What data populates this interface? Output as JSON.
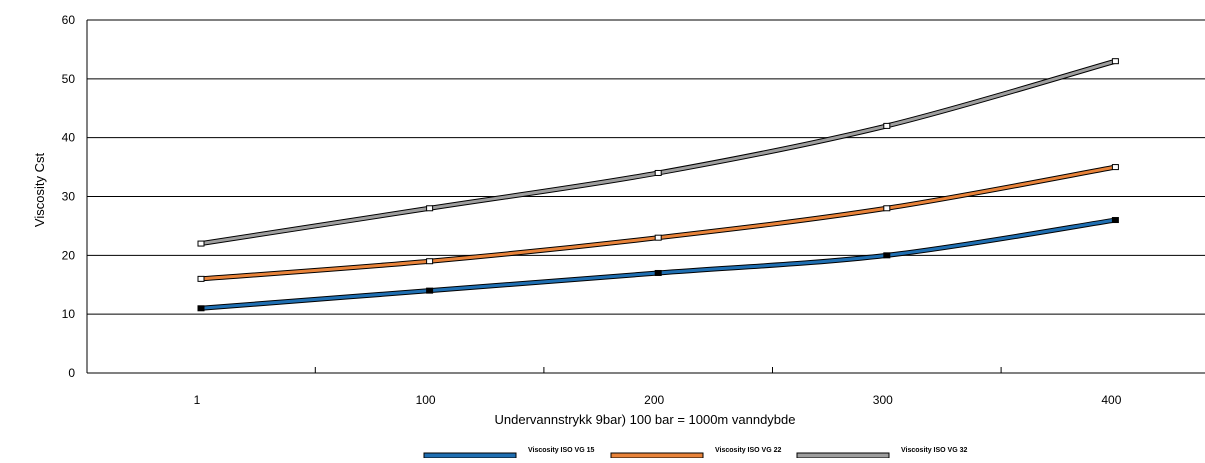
{
  "chart_data": {
    "type": "line",
    "title": "",
    "xlabel": "Undervannstrykk 9bar) 100 bar = 1000m vanndybde",
    "ylabel": "Viscosity Cst",
    "categories": [
      "1",
      "100",
      "200",
      "300",
      "400"
    ],
    "ylim": [
      0,
      60
    ],
    "yticks": [
      0,
      10,
      20,
      30,
      40,
      50,
      60
    ],
    "grid": true,
    "legend_position": "bottom",
    "smooth": true,
    "series": [
      {
        "name": "Viscosity ISO VG 15",
        "values": [
          11,
          14,
          17,
          20,
          26
        ],
        "color": "#1f6fb2"
      },
      {
        "name": "Viscosity ISO VG 22",
        "values": [
          16,
          19,
          23,
          28,
          35
        ],
        "color": "#e8833a"
      },
      {
        "name": "Viscosity ISO VG 32",
        "values": [
          22,
          28,
          34,
          42,
          53
        ],
        "color": "#9e9e9e"
      }
    ]
  }
}
